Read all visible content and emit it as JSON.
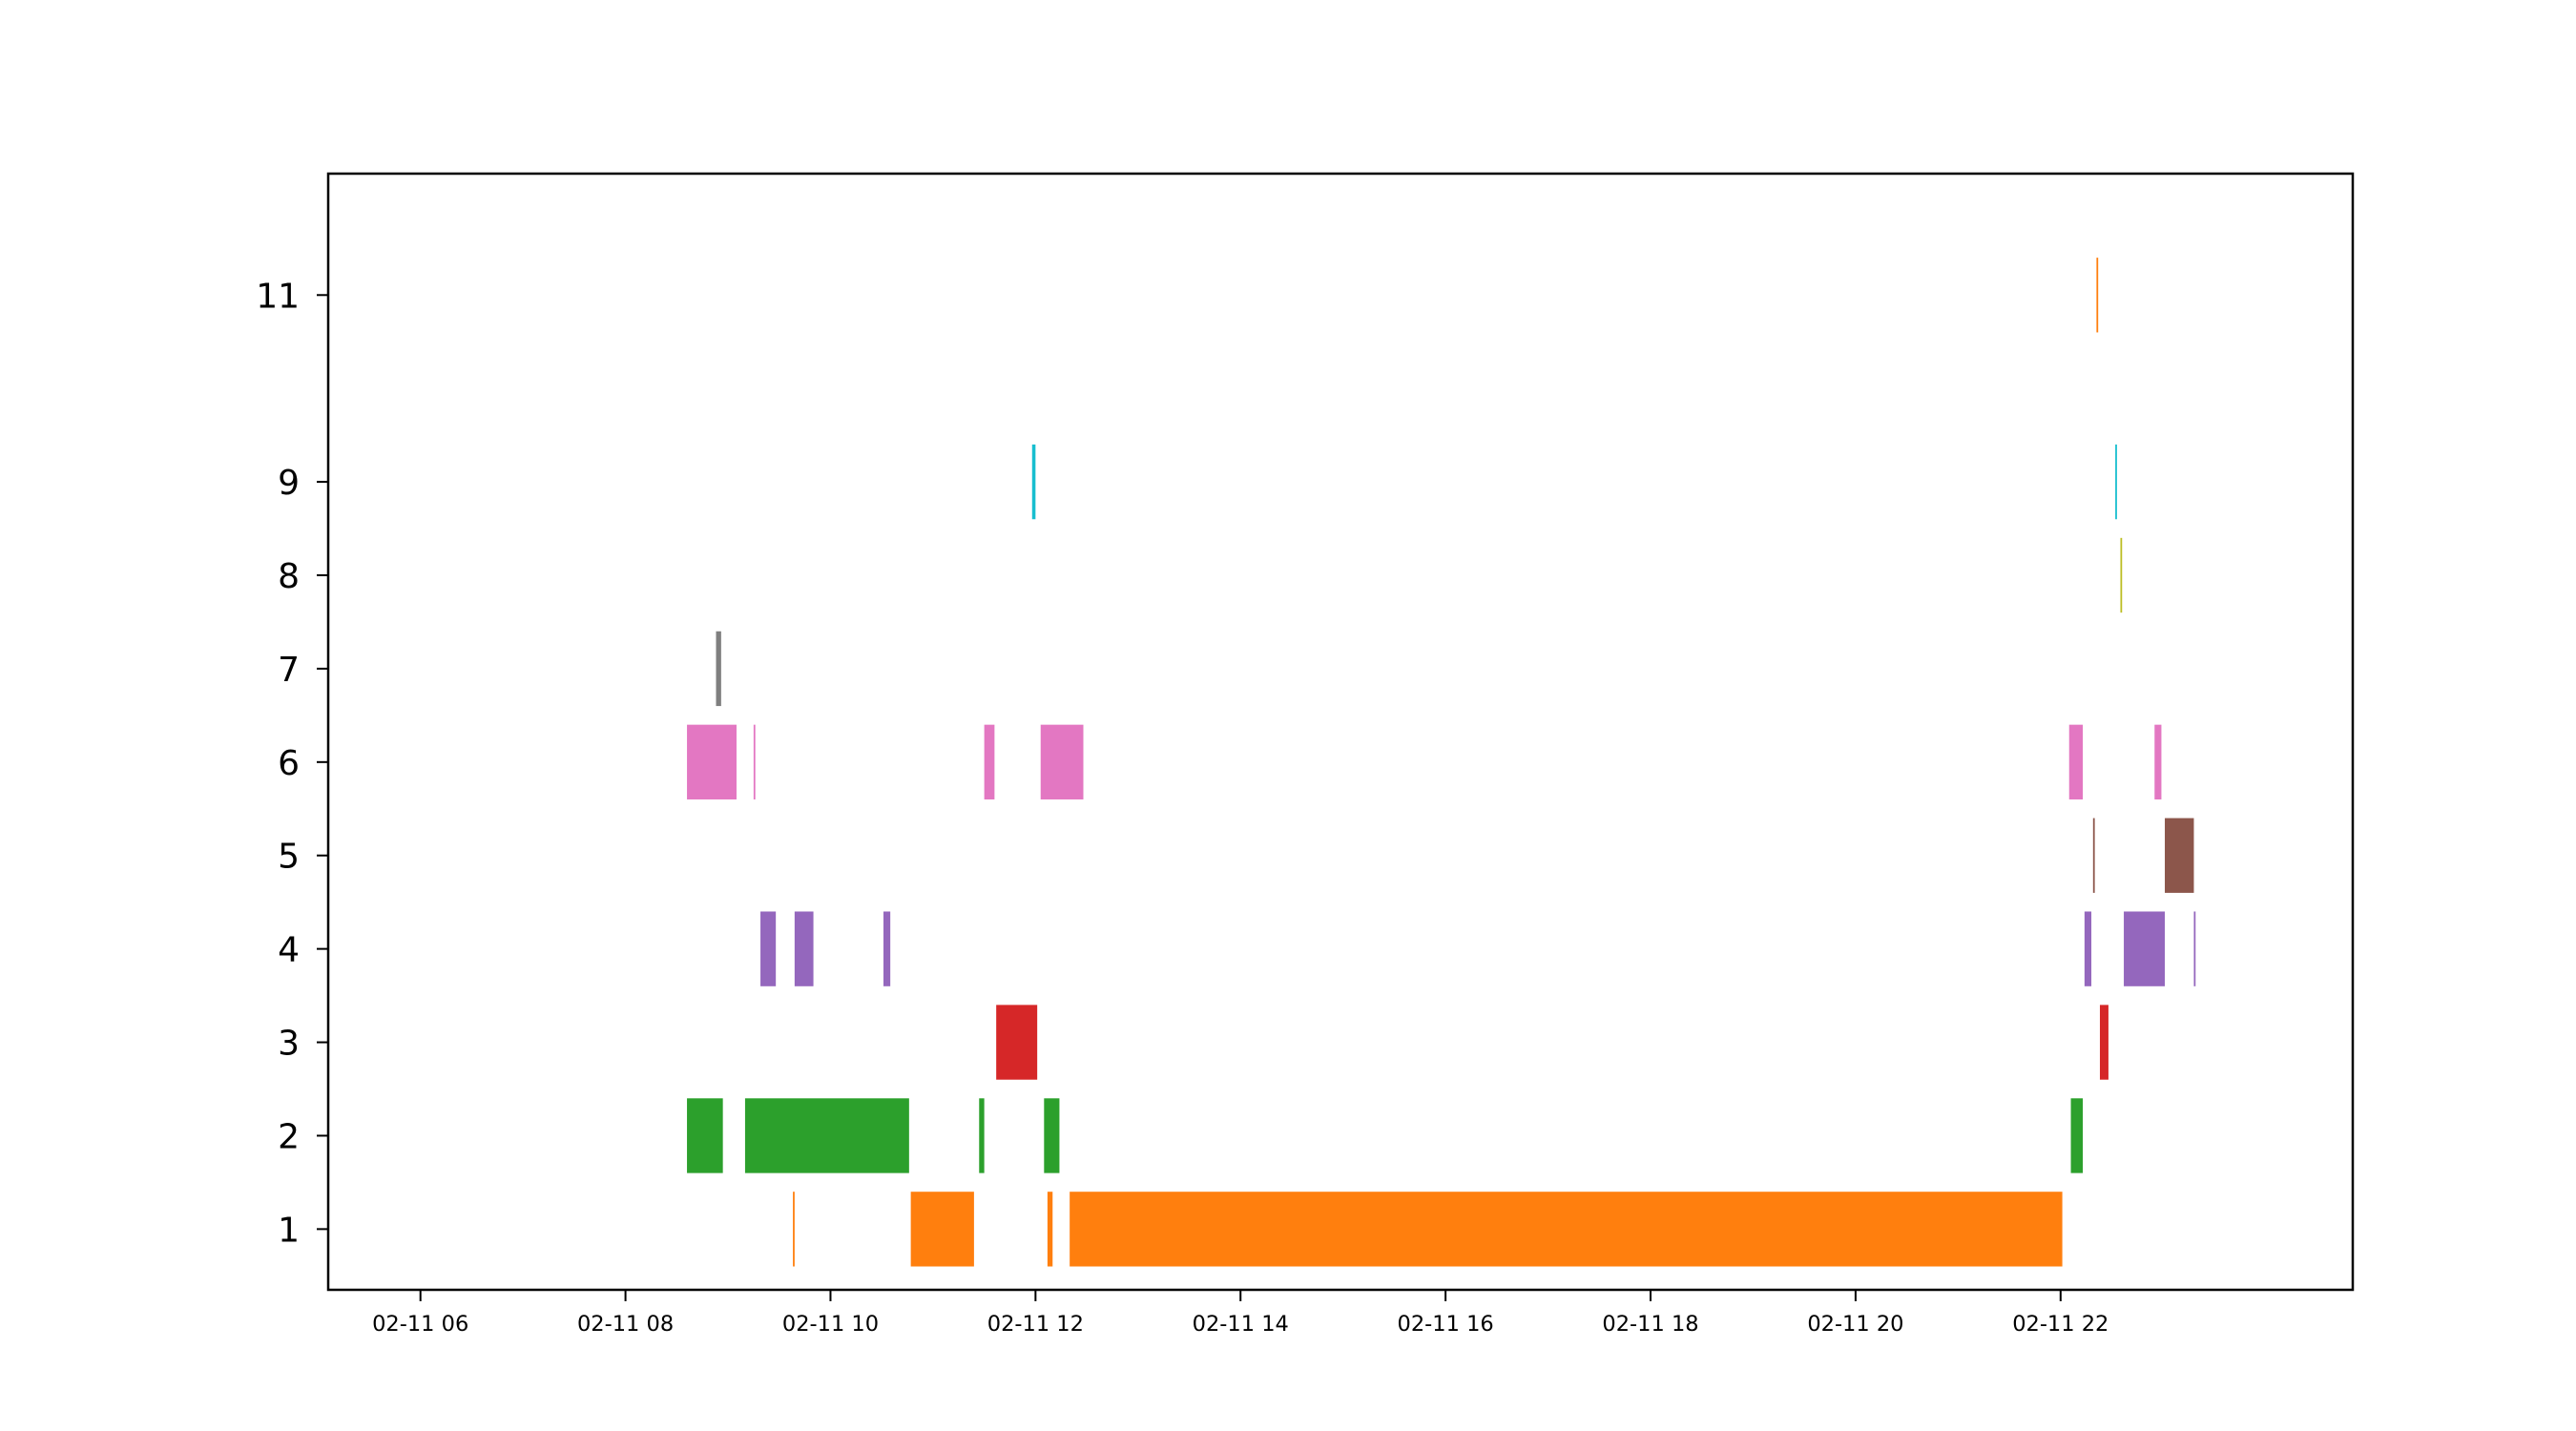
{
  "chart_data": {
    "type": "bar",
    "orientation": "horizontal-timeline",
    "title": "",
    "xlabel": "",
    "ylabel": "",
    "grid": false,
    "legend": "none",
    "x_axis": {
      "kind": "datetime",
      "range": [
        "02-11 05:06",
        "02-11 24:51"
      ],
      "ticks": [
        "02-11 06",
        "02-11 08",
        "02-11 10",
        "02-11 12",
        "02-11 14",
        "02-11 16",
        "02-11 18",
        "02-11 20",
        "02-11 22"
      ]
    },
    "y_axis": {
      "range": [
        0.35,
        12.3
      ],
      "ticks": [
        "1",
        "2",
        "3",
        "4",
        "5",
        "6",
        "7",
        "8",
        "9",
        "11"
      ]
    },
    "series": [
      {
        "row": 1,
        "color": "#ff7f0e",
        "intervals": [
          [
            "02-11 09:38",
            "02-11 09:39"
          ],
          [
            "02-11 10:47",
            "02-11 11:24"
          ],
          [
            "02-11 12:07",
            "02-11 12:10"
          ],
          [
            "02-11 12:20",
            "02-11 22:01"
          ]
        ]
      },
      {
        "row": 2,
        "color": "#2ca02c",
        "intervals": [
          [
            "02-11 08:36",
            "02-11 08:57"
          ],
          [
            "02-11 09:10",
            "02-11 10:46"
          ],
          [
            "02-11 11:27",
            "02-11 11:30"
          ],
          [
            "02-11 12:05",
            "02-11 12:14"
          ],
          [
            "02-11 22:06",
            "02-11 22:13"
          ]
        ]
      },
      {
        "row": 3,
        "color": "#d62728",
        "intervals": [
          [
            "02-11 11:37",
            "02-11 12:01"
          ],
          [
            "02-11 22:23",
            "02-11 22:28"
          ]
        ]
      },
      {
        "row": 4,
        "color": "#9467bd",
        "intervals": [
          [
            "02-11 09:19",
            "02-11 09:28"
          ],
          [
            "02-11 09:39",
            "02-11 09:50"
          ],
          [
            "02-11 10:31",
            "02-11 10:35"
          ],
          [
            "02-11 22:14",
            "02-11 22:18"
          ],
          [
            "02-11 22:37",
            "02-11 23:01"
          ],
          [
            "02-11 23:18",
            "02-11 23:19"
          ]
        ]
      },
      {
        "row": 5,
        "color": "#8c564b",
        "intervals": [
          [
            "02-11 22:19",
            "02-11 22:20"
          ],
          [
            "02-11 23:01",
            "02-11 23:18"
          ]
        ]
      },
      {
        "row": 6,
        "color": "#e377c2",
        "intervals": [
          [
            "02-11 08:36",
            "02-11 09:05"
          ],
          [
            "02-11 09:15",
            "02-11 09:16"
          ],
          [
            "02-11 11:30",
            "02-11 11:36"
          ],
          [
            "02-11 12:03",
            "02-11 12:28"
          ],
          [
            "02-11 22:05",
            "02-11 22:13"
          ],
          [
            "02-11 22:55",
            "02-11 22:59"
          ]
        ]
      },
      {
        "row": 7,
        "color": "#7f7f7f",
        "intervals": [
          [
            "02-11 08:53",
            "02-11 08:56"
          ]
        ]
      },
      {
        "row": 8,
        "color": "#bcbd22",
        "intervals": [
          [
            "02-11 22:35",
            "02-11 22:36"
          ]
        ]
      },
      {
        "row": 9,
        "color": "#17becf",
        "intervals": [
          [
            "02-11 11:58",
            "02-11 12:00"
          ],
          [
            "02-11 22:32",
            "02-11 22:33"
          ]
        ]
      },
      {
        "row": 11,
        "color": "#ff7f0e",
        "intervals": [
          [
            "02-11 22:21",
            "02-11 22:22"
          ]
        ]
      }
    ]
  }
}
